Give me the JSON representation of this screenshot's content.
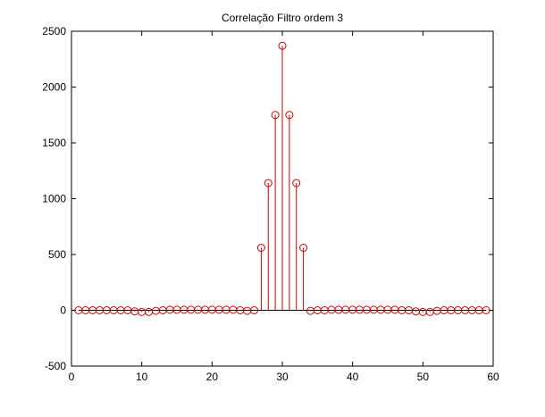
{
  "figure": {
    "title": "Correlação Filtro ordem 3"
  },
  "colors": {
    "stem": "#cc0000",
    "axis": "#000000",
    "background": "#ffffff"
  },
  "chart_data": {
    "type": "stem",
    "title": "Correlação Filtro ordem 3",
    "xlabel": "",
    "ylabel": "",
    "xlim": [
      0,
      60
    ],
    "ylim": [
      -500,
      2500
    ],
    "xticks": [
      0,
      10,
      20,
      30,
      40,
      50,
      60
    ],
    "yticks": [
      -500,
      0,
      500,
      1000,
      1500,
      2000,
      2500
    ],
    "grid": false,
    "marker": "circle",
    "x": [
      1,
      2,
      3,
      4,
      5,
      6,
      7,
      8,
      9,
      10,
      11,
      12,
      13,
      14,
      15,
      16,
      17,
      18,
      19,
      20,
      21,
      22,
      23,
      24,
      25,
      26,
      27,
      28,
      29,
      30,
      31,
      32,
      33,
      34,
      35,
      36,
      37,
      38,
      39,
      40,
      41,
      42,
      43,
      44,
      45,
      46,
      47,
      48,
      49,
      50,
      51,
      52,
      53,
      54,
      55,
      56,
      57,
      58,
      59
    ],
    "y": [
      0,
      0,
      0,
      0,
      0,
      0,
      0,
      0,
      -10,
      -15,
      -15,
      -5,
      0,
      5,
      5,
      5,
      5,
      5,
      5,
      5,
      5,
      5,
      5,
      0,
      -5,
      0,
      560,
      1140,
      1750,
      2370,
      1750,
      1140,
      560,
      -5,
      0,
      0,
      5,
      5,
      5,
      5,
      5,
      5,
      5,
      5,
      5,
      5,
      0,
      0,
      -10,
      -15,
      -15,
      -5,
      0,
      0,
      0,
      0,
      0,
      0,
      0
    ]
  }
}
